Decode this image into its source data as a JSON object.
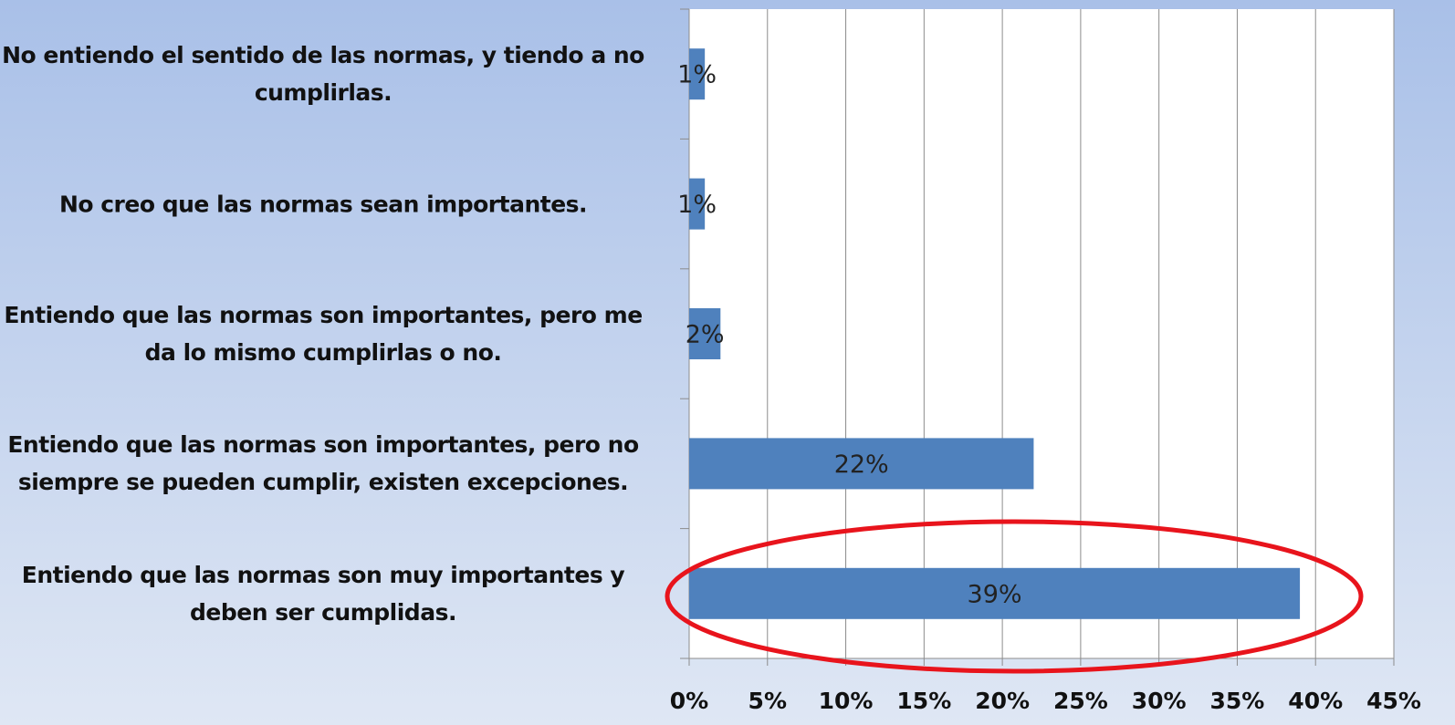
{
  "chart_data": {
    "type": "hbar",
    "categories": [
      "No entiendo el sentido de las normas, y tiendo a no cumplirlas.",
      "No creo que las normas sean importantes.",
      "Entiendo que las normas son importantes, pero me da lo mismo cumplirlas o no.",
      "Entiendo que las normas son importantes, pero no siempre se pueden cumplir, existen excepciones.",
      "Entiendo que las normas son muy importantes y deben ser cumplidas."
    ],
    "values": [
      1,
      1,
      2,
      22,
      39
    ],
    "value_labels": [
      "1%",
      "1%",
      "2%",
      "22%",
      "39%"
    ],
    "color": "#4f81bd",
    "xlim": [
      0,
      45
    ],
    "xticks": [
      {
        "value": 0,
        "label": "0%"
      },
      {
        "value": 5,
        "label": "5%"
      },
      {
        "value": 10,
        "label": "10%"
      },
      {
        "value": 15,
        "label": "15%"
      },
      {
        "value": 20,
        "label": "20%"
      },
      {
        "value": 25,
        "label": "25%"
      },
      {
        "value": 30,
        "label": "30%"
      },
      {
        "value": 35,
        "label": "35%"
      },
      {
        "value": 40,
        "label": "40%"
      },
      {
        "value": 45,
        "label": "45%"
      }
    ],
    "grid": true
  }
}
